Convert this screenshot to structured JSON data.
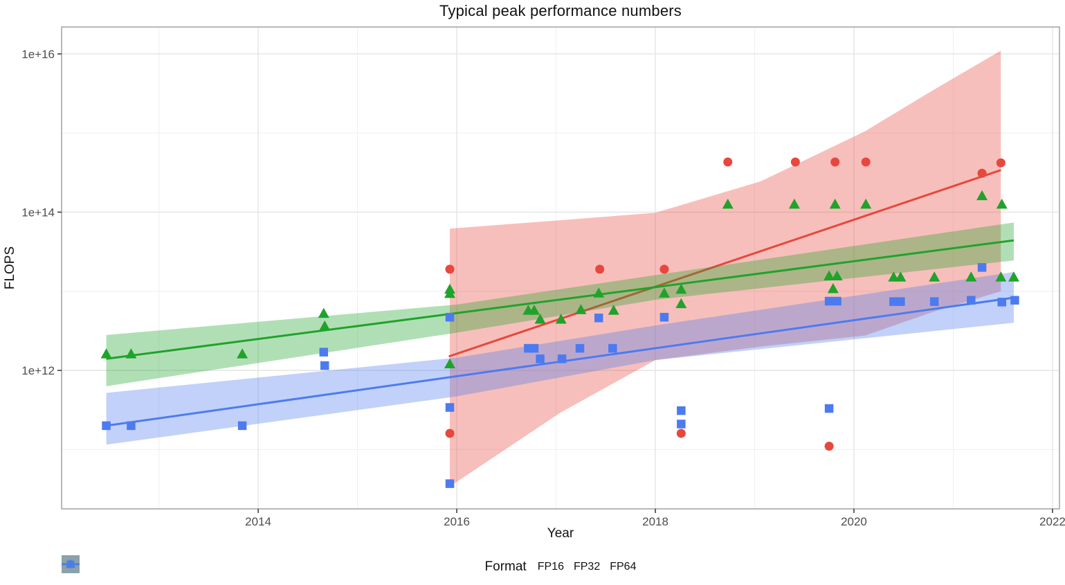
{
  "chart_data": {
    "type": "scatter",
    "title": "Typical peak performance numbers",
    "xlabel": "Year",
    "ylabel": "FLOPS",
    "grid": true,
    "legend": {
      "title": "Format",
      "position": "bottom"
    },
    "x_axis": {
      "min": 2012.02,
      "max": 2022.07,
      "major_ticks": [
        2014,
        2016,
        2018,
        2020,
        2022
      ],
      "minor_ticks": [
        2013,
        2015,
        2017,
        2019,
        2021
      ]
    },
    "y_axis": {
      "scale": "log10",
      "min_exp": 10.25,
      "max_exp": 16.34,
      "major_ticks": [
        {
          "label": "1e+12",
          "exp": 12
        },
        {
          "label": "1e+14",
          "exp": 14
        },
        {
          "label": "1e+16",
          "exp": 16
        }
      ],
      "minor_exps": [
        11,
        13,
        15
      ]
    },
    "series": [
      {
        "name": "FP16",
        "marker": "circle",
        "color": "#e8473d",
        "band_color": "rgba(232,71,61,0.35)",
        "points": [
          [
            2015.93,
            19000000000000.0
          ],
          [
            2015.93,
            160000000000.0
          ],
          [
            2017.44,
            19000000000000.0
          ],
          [
            2018.09,
            19000000000000.0
          ],
          [
            2018.26,
            160000000000.0
          ],
          [
            2018.73,
            430000000000000.0
          ],
          [
            2019.41,
            430000000000000.0
          ],
          [
            2019.75,
            110000000000.0
          ],
          [
            2019.81,
            430000000000000.0
          ],
          [
            2020.12,
            430000000000000.0
          ],
          [
            2021.29,
            310000000000000.0
          ],
          [
            2021.48,
            420000000000000.0
          ]
        ],
        "trend": [
          [
            2015.92,
            1500000000000.0
          ],
          [
            2021.48,
            340000000000000.0
          ]
        ],
        "band": [
          [
            2015.93,
            34000000000.0,
            62000000000000.0
          ],
          [
            2017.04,
            290000000000.0,
            79000000000000.0
          ],
          [
            2018.0,
            1350000000000.0,
            98000000000000.0
          ],
          [
            2019.06,
            2000000000000.0,
            245000000000000.0
          ],
          [
            2020.11,
            2750000000000.0,
            1050000000000000.0
          ],
          [
            2020.8,
            5500000000000.0,
            3500000000000000.0
          ],
          [
            2021.48,
            10000000000000.0,
            1.1e+16
          ]
        ]
      },
      {
        "name": "FP32",
        "marker": "triangle",
        "color": "#1fa32b",
        "band_color": "rgba(31,163,43,0.35)",
        "points": [
          [
            2012.47,
            1600000000000.0
          ],
          [
            2012.72,
            1600000000000.0
          ],
          [
            2013.84,
            1600000000000.0
          ],
          [
            2014.66,
            5200000000000.0
          ],
          [
            2014.67,
            3600000000000.0
          ],
          [
            2015.93,
            10500000000000.0
          ],
          [
            2015.93,
            9300000000000.0
          ],
          [
            2015.93,
            1200000000000.0
          ],
          [
            2016.72,
            5700000000000.0
          ],
          [
            2016.78,
            5700000000000.0
          ],
          [
            2016.84,
            4400000000000.0
          ],
          [
            2017.05,
            4400000000000.0
          ],
          [
            2017.25,
            5800000000000.0
          ],
          [
            2017.43,
            9400000000000.0
          ],
          [
            2017.58,
            5700000000000.0
          ],
          [
            2018.09,
            9400000000000.0
          ],
          [
            2018.26,
            10500000000000.0
          ],
          [
            2018.26,
            6900000000000.0
          ],
          [
            2018.73,
            125000000000000.0
          ],
          [
            2019.4,
            125000000000000.0
          ],
          [
            2019.75,
            15500000000000.0
          ],
          [
            2019.79,
            10700000000000.0
          ],
          [
            2019.81,
            125000000000000.0
          ],
          [
            2019.83,
            15500000000000.0
          ],
          [
            2020.12,
            125000000000000.0
          ],
          [
            2020.4,
            15000000000000.0
          ],
          [
            2020.47,
            15000000000000.0
          ],
          [
            2020.81,
            15000000000000.0
          ],
          [
            2021.18,
            15000000000000.0
          ],
          [
            2021.29,
            160000000000000.0
          ],
          [
            2021.48,
            15000000000000.0
          ],
          [
            2021.49,
            125000000000000.0
          ],
          [
            2021.61,
            15000000000000.0
          ]
        ],
        "trend": [
          [
            2012.47,
            1400000000000.0
          ],
          [
            2021.61,
            44000000000000.0
          ]
        ],
        "band": [
          [
            2012.47,
            630000000000.0,
            2800000000000.0
          ],
          [
            2016.0,
            3000000000000.0,
            6800000000000.0
          ],
          [
            2018.0,
            7800000000000.0,
            16000000000000.0
          ],
          [
            2021.61,
            24500000000000.0,
            74000000000000.0
          ]
        ]
      },
      {
        "name": "FP64",
        "marker": "square",
        "color": "#4d7bef",
        "band_color": "rgba(77,123,239,0.35)",
        "points": [
          [
            2012.47,
            200000000000.0
          ],
          [
            2012.72,
            200000000000.0
          ],
          [
            2013.84,
            200000000000.0
          ],
          [
            2014.66,
            1700000000000.0
          ],
          [
            2014.67,
            1150000000000.0
          ],
          [
            2015.93,
            4700000000000.0
          ],
          [
            2015.93,
            340000000000.0
          ],
          [
            2015.93,
            37000000000.0
          ],
          [
            2016.72,
            1900000000000.0
          ],
          [
            2016.78,
            1900000000000.0
          ],
          [
            2016.84,
            1400000000000.0
          ],
          [
            2017.06,
            1400000000000.0
          ],
          [
            2017.24,
            1900000000000.0
          ],
          [
            2017.43,
            4600000000000.0
          ],
          [
            2017.57,
            1900000000000.0
          ],
          [
            2018.09,
            4700000000000.0
          ],
          [
            2018.26,
            310000000000.0
          ],
          [
            2018.26,
            210000000000.0
          ],
          [
            2019.75,
            7500000000000.0
          ],
          [
            2019.75,
            330000000000.0
          ],
          [
            2019.83,
            7500000000000.0
          ],
          [
            2020.4,
            7400000000000.0
          ],
          [
            2020.47,
            7400000000000.0
          ],
          [
            2020.81,
            7400000000000.0
          ],
          [
            2021.18,
            7700000000000.0
          ],
          [
            2021.29,
            20000000000000.0
          ],
          [
            2021.49,
            7300000000000.0
          ],
          [
            2021.62,
            7700000000000.0
          ]
        ],
        "trend": [
          [
            2012.47,
            200000000000.0
          ],
          [
            2021.61,
            8300000000000.0
          ]
        ],
        "band": [
          [
            2012.47,
            115000000000.0,
            520000000000.0
          ],
          [
            2016.0,
            470000000000.0,
            1450000000000.0
          ],
          [
            2018.0,
            1350000000000.0,
            3700000000000.0
          ],
          [
            2021.61,
            4000000000000.0,
            17500000000000.0
          ]
        ]
      }
    ]
  }
}
